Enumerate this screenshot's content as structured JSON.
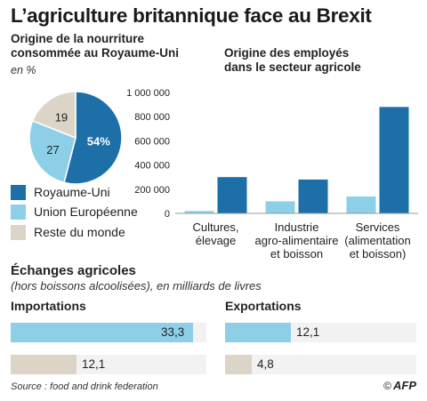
{
  "title": "L’agriculture britannique face au Brexit",
  "colors": {
    "uk": "#1d6fa8",
    "eu": "#8ecfe8",
    "world": "#ddd4c8",
    "track": "#f2f2f2"
  },
  "food_origin": {
    "title_line1": "Origine de la nourriture",
    "title_line2": "consommée au Royaume-Uni",
    "unit": "en %"
  },
  "legend": [
    {
      "label": "Royaume-Uni",
      "color": "#1d6fa8"
    },
    {
      "label": "Union Européenne",
      "color": "#8ecfe8"
    },
    {
      "label": "Reste du monde",
      "color": "#ddd4c8"
    }
  ],
  "employees": {
    "title_line1": "Origine des employés",
    "title_line2": "dans le secteur agricole"
  },
  "trade": {
    "title": "Échanges agricoles",
    "note": "(hors boissons alcoolisées), en milliards de livres",
    "imports_label": "Importations",
    "exports_label": "Exportations"
  },
  "footer": {
    "source": "Source : food and drink federation",
    "credit": "AFP",
    "copyright": "©"
  },
  "chart_data": [
    {
      "type": "pie",
      "labels": [
        "Royaume-Uni",
        "Union Européenne",
        "Reste du monde"
      ],
      "values": [
        54,
        27,
        19
      ],
      "display_labels": [
        "54%",
        "27",
        "19"
      ],
      "colors": [
        "#1d6fa8",
        "#8ecfe8",
        "#ddd4c8"
      ],
      "title": "Origine de la nourriture consommée au Royaume-Uni",
      "unit": "en %"
    },
    {
      "type": "bar",
      "title": "Origine des employés dans le secteur agricole",
      "categories": [
        [
          "Cultures,",
          "élevage"
        ],
        [
          "Industrie",
          "agro-alimentaire",
          "et boisson"
        ],
        [
          "Services",
          "(alimentation",
          "et boisson)"
        ]
      ],
      "series": [
        {
          "name": "Union Européenne",
          "color": "#8ecfe8",
          "values": [
            20000,
            100000,
            140000
          ]
        },
        {
          "name": "Royaume-Uni",
          "color": "#1d6fa8",
          "values": [
            300000,
            280000,
            880000
          ]
        }
      ],
      "ylim": [
        0,
        1000000
      ],
      "yticks": [
        0,
        200000,
        400000,
        600000,
        800000,
        1000000
      ],
      "ytick_labels": [
        "0",
        "200 000",
        "400 000",
        "600 000",
        "800 000",
        "1 000 000"
      ],
      "grid": false
    },
    {
      "type": "bar",
      "orientation": "horizontal",
      "title": "Importations",
      "unit": "milliards de livres",
      "categories": [
        "Union Européenne",
        "Reste du monde"
      ],
      "values": [
        33.3,
        12.1
      ],
      "value_labels": [
        "33,3",
        "12,1"
      ],
      "colors": [
        "#8ecfe8",
        "#ddd4c8"
      ],
      "xlim": [
        0,
        33.3
      ]
    },
    {
      "type": "bar",
      "orientation": "horizontal",
      "title": "Exportations",
      "unit": "milliards de livres",
      "categories": [
        "Union Européenne",
        "Reste du monde"
      ],
      "values": [
        12.1,
        4.8
      ],
      "value_labels": [
        "12,1",
        "4,8"
      ],
      "colors": [
        "#8ecfe8",
        "#ddd4c8"
      ],
      "xlim": [
        0,
        33.3
      ]
    }
  ]
}
